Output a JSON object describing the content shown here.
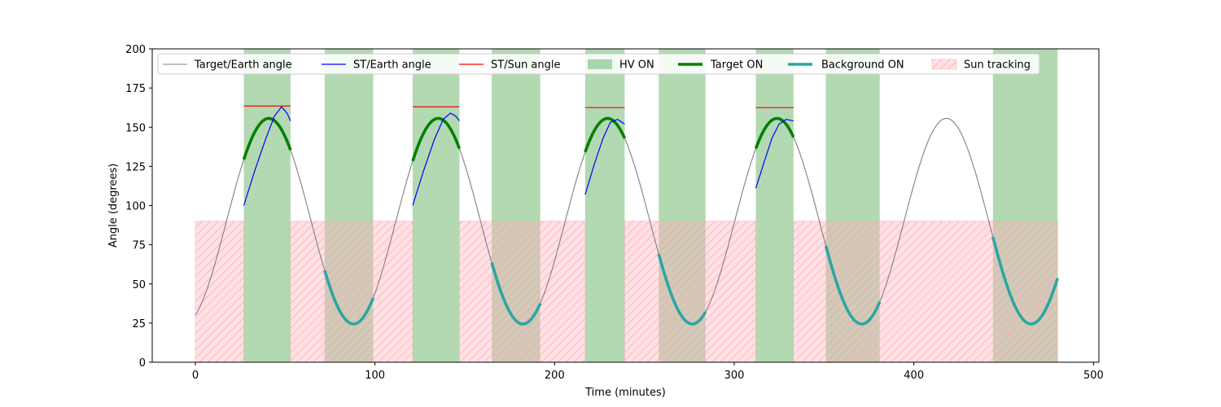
{
  "chart_data": {
    "type": "line",
    "title": "",
    "xlabel": "Time (minutes)",
    "ylabel": "Angle (degrees)",
    "xlim": [
      -24,
      503
    ],
    "ylim": [
      0,
      200
    ],
    "xticks": [
      0,
      100,
      200,
      300,
      400,
      500
    ],
    "yticks": [
      0,
      25,
      50,
      75,
      100,
      125,
      150,
      175,
      200
    ],
    "grid": false,
    "legend_placement": "top (single row)",
    "target_earth_angle": {
      "name": "Target/Earth angle",
      "color": "#808080",
      "model": "sinusoid",
      "min": 24.4,
      "max": 155.6,
      "period_minutes": 94.3,
      "value_at_0": 30.0,
      "x_range": [
        0,
        480
      ],
      "points": [
        [
          0,
          30
        ],
        [
          10,
          56
        ],
        [
          20,
          90
        ],
        [
          27,
          115
        ],
        [
          35,
          140
        ],
        [
          41,
          155
        ],
        [
          47,
          150
        ],
        [
          53,
          135
        ],
        [
          60,
          110
        ],
        [
          72,
          68
        ],
        [
          80,
          43
        ],
        [
          89,
          25
        ],
        [
          95,
          30
        ],
        [
          100,
          45
        ]
      ]
    },
    "st_earth_angle": {
      "name": "ST/Earth angle",
      "color": "#0000ff",
      "segments": [
        [
          [
            27,
            100
          ],
          [
            33,
            122
          ],
          [
            39,
            142
          ],
          [
            44,
            157
          ],
          [
            48,
            163
          ],
          [
            51,
            159
          ],
          [
            53,
            154
          ]
        ],
        [
          [
            121,
            100
          ],
          [
            127,
            122
          ],
          [
            133,
            142
          ],
          [
            138,
            155
          ],
          [
            142,
            159
          ],
          [
            145,
            157
          ],
          [
            147,
            154
          ]
        ],
        [
          [
            217,
            107
          ],
          [
            222,
            126
          ],
          [
            227,
            143
          ],
          [
            231,
            153
          ],
          [
            235,
            155
          ],
          [
            239,
            152
          ]
        ],
        [
          [
            312,
            111
          ],
          [
            317,
            129
          ],
          [
            321,
            143
          ],
          [
            325,
            152
          ],
          [
            329,
            155
          ],
          [
            333,
            154
          ]
        ]
      ]
    },
    "st_sun_angle": {
      "name": "ST/Sun angle",
      "color": "#ff0000",
      "segments": [
        {
          "x": [
            27,
            53
          ],
          "y": 163.5
        },
        {
          "x": [
            121,
            147
          ],
          "y": 163
        },
        {
          "x": [
            217,
            239
          ],
          "y": 162.5
        },
        {
          "x": [
            312,
            333
          ],
          "y": 162.5
        }
      ]
    },
    "hv_on": {
      "name": "HV ON",
      "color": "#008000",
      "intervals": [
        [
          27,
          53
        ],
        [
          72,
          99
        ],
        [
          121,
          147
        ],
        [
          165,
          192
        ],
        [
          217,
          239
        ],
        [
          258,
          284
        ],
        [
          312,
          333
        ],
        [
          351,
          381
        ],
        [
          444,
          480
        ]
      ]
    },
    "target_on": {
      "name": "Target ON",
      "color": "#008000",
      "intervals": [
        [
          27,
          53
        ],
        [
          121,
          147
        ],
        [
          217,
          239
        ],
        [
          312,
          333
        ]
      ]
    },
    "background_on": {
      "name": "Background ON",
      "color": "#2ca6a4",
      "intervals": [
        [
          72,
          99
        ],
        [
          165,
          192
        ],
        [
          258,
          284
        ],
        [
          351,
          381
        ],
        [
          444,
          480
        ]
      ]
    },
    "sun_tracking": {
      "name": "Sun tracking",
      "color": "#ffb6c1",
      "hatch_color": "#f4a0a0",
      "y_range": [
        0,
        90
      ],
      "intervals": [
        [
          0,
          27
        ],
        [
          53,
          121
        ],
        [
          147,
          217
        ],
        [
          239,
          312
        ],
        [
          333,
          480
        ]
      ]
    }
  }
}
